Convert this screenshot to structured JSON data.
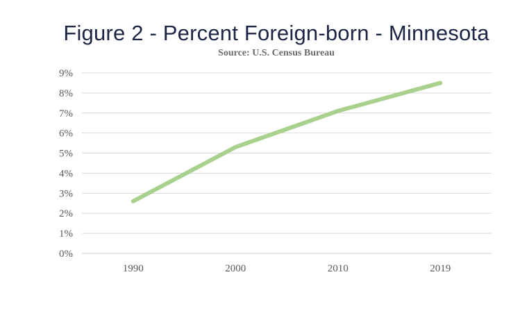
{
  "chart_data": {
    "type": "line",
    "title": "Figure 2 - Percent Foreign-born - Minnesota",
    "subtitle": "Source: U.S. Census Bureau",
    "categories": [
      "1990",
      "2000",
      "2010",
      "2019"
    ],
    "series": [
      {
        "name": "Percent Foreign-born",
        "values": [
          2.6,
          5.3,
          7.1,
          8.5
        ],
        "color": "#a9d18e"
      }
    ],
    "xlabel": "",
    "ylabel": "",
    "ylim": [
      0,
      9
    ],
    "yticks": [
      "0%",
      "1%",
      "2%",
      "3%",
      "4%",
      "5%",
      "6%",
      "7%",
      "8%",
      "9%"
    ],
    "grid": true,
    "gridColor": "#d9d9d9",
    "legend": "none"
  }
}
